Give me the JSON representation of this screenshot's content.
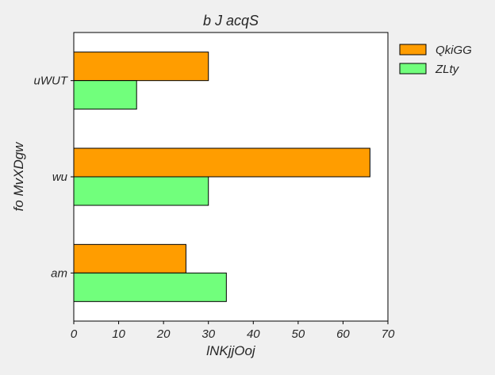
{
  "chart_data": {
    "type": "bar",
    "orientation": "horizontal",
    "title": "b J acqS",
    "xlabel": "lNKjjOoj",
    "ylabel": "fo MvXDgw",
    "categories": [
      "am",
      "wu",
      "uWUT"
    ],
    "series": [
      {
        "name": "QkiGG",
        "values": [
          25,
          66,
          30
        ],
        "color": "#ff9d00"
      },
      {
        "name": "ZLty",
        "values": [
          34,
          30,
          14
        ],
        "color": "#71ff7c"
      }
    ],
    "xlim": [
      0,
      70
    ],
    "xticks": [
      0,
      10,
      20,
      30,
      40,
      50,
      60,
      70
    ],
    "grid": false,
    "legend_position": "outside-top-right"
  }
}
